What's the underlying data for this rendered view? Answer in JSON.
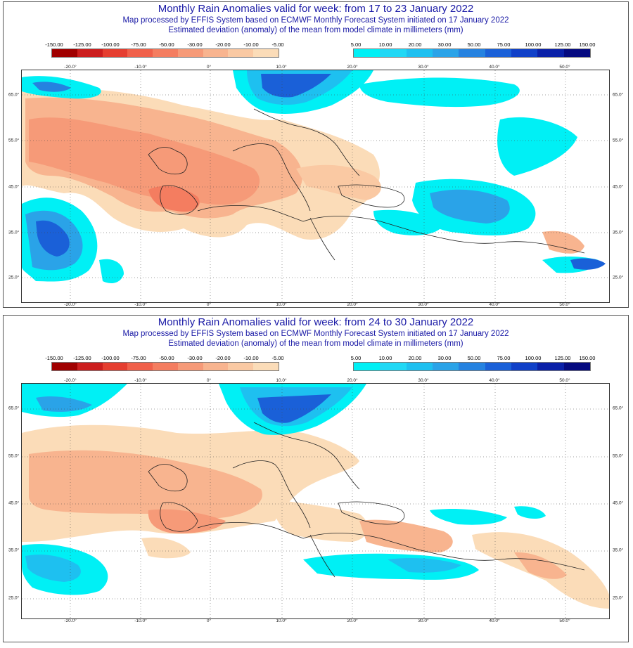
{
  "legend": {
    "negative_labels": [
      "-150.00",
      "-125.00",
      "-100.00",
      "-75.00",
      "-50.00",
      "-30.00",
      "-20.00",
      "-10.00",
      "-5.00"
    ],
    "negative_colors": [
      "#a00000",
      "#cc1e1e",
      "#e53e30",
      "#f0604a",
      "#f47d60",
      "#f69a78",
      "#f8b48f",
      "#fac9a3",
      "#fbdcb8"
    ],
    "positive_labels": [
      "5.00",
      "10.00",
      "20.00",
      "30.00",
      "50.00",
      "75.00",
      "100.00",
      "125.00",
      "150.00"
    ],
    "positive_colors": [
      "#00f0f5",
      "#20d8f5",
      "#1ec0f0",
      "#2aa3e8",
      "#2582e0",
      "#1a60d8",
      "#1040c8",
      "#0a20a8",
      "#050a80"
    ]
  },
  "axes": {
    "lon_labels": [
      "-20.0°",
      "-10.0°",
      "0°",
      "10.0°",
      "20.0°",
      "30.0°",
      "40.0°",
      "50.0°"
    ],
    "lat_labels": [
      "65.0°",
      "55.0°",
      "45.0°",
      "35.0°",
      "25.0°"
    ]
  },
  "maps": [
    {
      "title": "Monthly Rain Anomalies valid for week: from 17 to 23 January 2022",
      "subtitle1": "Map processed by EFFIS System based on ECMWF Monthly Forecast System initiated on 17 January 2022",
      "subtitle2": "Estimated deviation (anomaly) of the mean from model climate in millimeters (mm)"
    },
    {
      "title": "Monthly Rain Anomalies valid for week: from 24 to 30 January 2022",
      "subtitle1": "Map processed by EFFIS System based on ECMWF Monthly Forecast System initiated on 17 January 2022",
      "subtitle2": "Estimated deviation (anomaly) of the mean from model climate in millimeters (mm)"
    }
  ]
}
